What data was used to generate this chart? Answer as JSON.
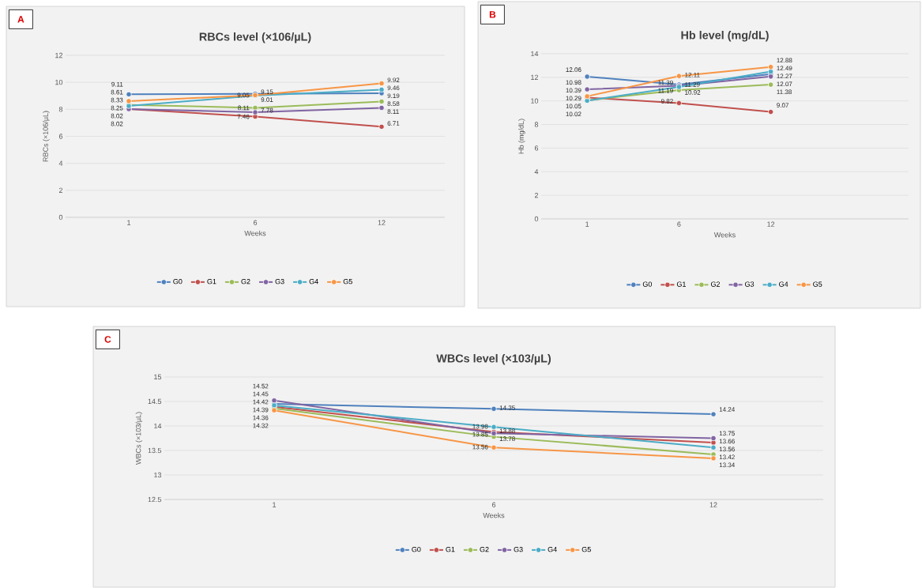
{
  "chart_data": [
    {
      "type": "line",
      "title": "RBCs level (×106/µL)",
      "xlabel": "Weeks",
      "ylabel": "RBCs (×106/µL)",
      "annotations": [
        "A"
      ],
      "categories": [
        "1",
        "6",
        "12"
      ],
      "series": [
        {
          "name": "G0",
          "color": "#4f81bd",
          "values": [
            9.11,
            9.15,
            9.19
          ]
        },
        {
          "name": "G1",
          "color": "#c0504d",
          "values": [
            8.02,
            7.46,
            6.71
          ]
        },
        {
          "name": "G2",
          "color": "#9bbb59",
          "values": [
            8.33,
            8.11,
            8.58
          ]
        },
        {
          "name": "G3",
          "color": "#8064a2",
          "values": [
            8.02,
            7.78,
            8.11
          ]
        },
        {
          "name": "G4",
          "color": "#4bacc6",
          "values": [
            8.25,
            9.01,
            9.46
          ]
        },
        {
          "name": "G5",
          "color": "#f79646",
          "values": [
            8.61,
            9.05,
            9.92
          ]
        }
      ],
      "ylim": [
        0,
        12
      ],
      "yticks": [
        0,
        2,
        4,
        6,
        8,
        10,
        12
      ],
      "grid": "y",
      "legend": "bottom",
      "marker": "circle",
      "line_style": "solid",
      "data_labels": true
    },
    {
      "type": "line",
      "title": "Hb level (mg/dL)",
      "xlabel": "Weeks",
      "ylabel": "Hb (mg/dL)",
      "annotations": [
        "B"
      ],
      "categories": [
        "1",
        "6",
        "12",
        null
      ],
      "series": [
        {
          "name": "G0",
          "color": "#4f81bd",
          "values": [
            12.06,
            11.39,
            12.27,
            null
          ]
        },
        {
          "name": "G1",
          "color": "#c0504d",
          "values": [
            10.29,
            9.82,
            9.07,
            null
          ]
        },
        {
          "name": "G2",
          "color": "#9bbb59",
          "values": [
            10.05,
            10.92,
            11.38,
            null
          ]
        },
        {
          "name": "G3",
          "color": "#8064a2",
          "values": [
            10.98,
            11.29,
            12.07,
            null
          ]
        },
        {
          "name": "G4",
          "color": "#4bacc6",
          "values": [
            10.02,
            11.19,
            12.49,
            null
          ]
        },
        {
          "name": "G5",
          "color": "#f79646",
          "values": [
            10.39,
            12.11,
            12.88,
            null
          ]
        }
      ],
      "ylim": [
        0,
        14
      ],
      "yticks": [
        0,
        2,
        4,
        6,
        8,
        10,
        12,
        14
      ],
      "grid": "y",
      "legend": "bottom",
      "marker": "circle",
      "line_style": "solid",
      "data_labels": true
    },
    {
      "type": "line",
      "title": "WBCs level (×103/µL)",
      "xlabel": "Weeks",
      "ylabel": "WBCs (×103/µL)",
      "annotations": [
        "C"
      ],
      "categories": [
        "1",
        "6",
        "12"
      ],
      "series": [
        {
          "name": "G0",
          "color": "#4f81bd",
          "values": [
            14.45,
            14.35,
            14.24
          ]
        },
        {
          "name": "G1",
          "color": "#c0504d",
          "values": [
            14.39,
            13.88,
            13.66
          ]
        },
        {
          "name": "G2",
          "color": "#9bbb59",
          "values": [
            14.36,
            13.78,
            13.42
          ]
        },
        {
          "name": "G3",
          "color": "#8064a2",
          "values": [
            14.52,
            13.85,
            13.75
          ]
        },
        {
          "name": "G4",
          "color": "#4bacc6",
          "values": [
            14.42,
            13.98,
            13.56
          ]
        },
        {
          "name": "G5",
          "color": "#f79646",
          "values": [
            14.32,
            13.56,
            13.34
          ]
        }
      ],
      "ylim": [
        12.5,
        15
      ],
      "yticks": [
        12.5,
        13,
        13.5,
        14,
        14.5,
        15
      ],
      "grid": "y",
      "legend": "bottom",
      "marker": "circle",
      "line_style": "solid",
      "data_labels": true
    }
  ]
}
